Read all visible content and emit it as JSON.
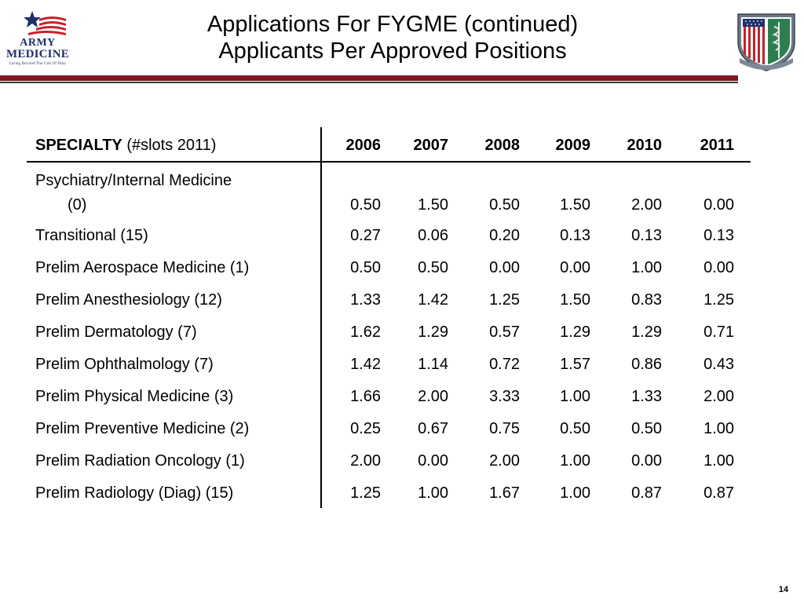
{
  "slide": {
    "title_line1": "Applications For FYGME (continued)",
    "title_line2": "Applicants Per Approved Positions",
    "page_number": "14"
  },
  "logo": {
    "line1": "ARMY",
    "line2": "MEDICINE",
    "tagline": "Caring Beyond The Call Of Duty",
    "icon": "flag-star-icon"
  },
  "crest": {
    "icon": "medical-crest-shield-icon"
  },
  "colors": {
    "rule_red": "#7d1a1f",
    "rule_dark": "#3a3a3a",
    "logo_blue": "#1f2f6b",
    "logo_red": "#c8202a"
  },
  "table": {
    "header": {
      "specialty_bold": "SPECIALTY",
      "specialty_rest": "(#slots 2011)",
      "years": [
        "2006",
        "2007",
        "2008",
        "2009",
        "2010",
        "2011"
      ]
    },
    "rows": [
      {
        "label": "Psychiatry/Internal Medicine",
        "label2": "(0)",
        "values": [
          "0.50",
          "1.50",
          "0.50",
          "1.50",
          "2.00",
          "0.00"
        ]
      },
      {
        "label": "Transitional (15)",
        "values": [
          "0.27",
          "0.06",
          "0.20",
          "0.13",
          "0.13",
          "0.13"
        ]
      },
      {
        "label": "Prelim Aerospace Medicine (1)",
        "values": [
          "0.50",
          "0.50",
          "0.00",
          "0.00",
          "1.00",
          "0.00"
        ]
      },
      {
        "label": "Prelim Anesthesiology (12)",
        "values": [
          "1.33",
          "1.42",
          "1.25",
          "1.50",
          "0.83",
          "1.25"
        ]
      },
      {
        "label": "Prelim Dermatology (7)",
        "values": [
          "1.62",
          "1.29",
          "0.57",
          "1.29",
          "1.29",
          "0.71"
        ]
      },
      {
        "label": "Prelim Ophthalmology (7)",
        "values": [
          "1.42",
          "1.14",
          "0.72",
          "1.57",
          "0.86",
          "0.43"
        ]
      },
      {
        "label": "Prelim Physical Medicine (3)",
        "values": [
          "1.66",
          "2.00",
          "3.33",
          "1.00",
          "1.33",
          "2.00"
        ]
      },
      {
        "label": "Prelim Preventive Medicine (2)",
        "values": [
          "0.25",
          "0.67",
          "0.75",
          "0.50",
          "0.50",
          "1.00"
        ]
      },
      {
        "label": "Prelim Radiation Oncology (1)",
        "values": [
          "2.00",
          "0.00",
          "2.00",
          "1.00",
          "0.00",
          "1.00"
        ]
      },
      {
        "label": "Prelim Radiology (Diag) (15)",
        "values": [
          "1.25",
          "1.00",
          "1.67",
          "1.00",
          "0.87",
          "0.87"
        ]
      }
    ]
  }
}
